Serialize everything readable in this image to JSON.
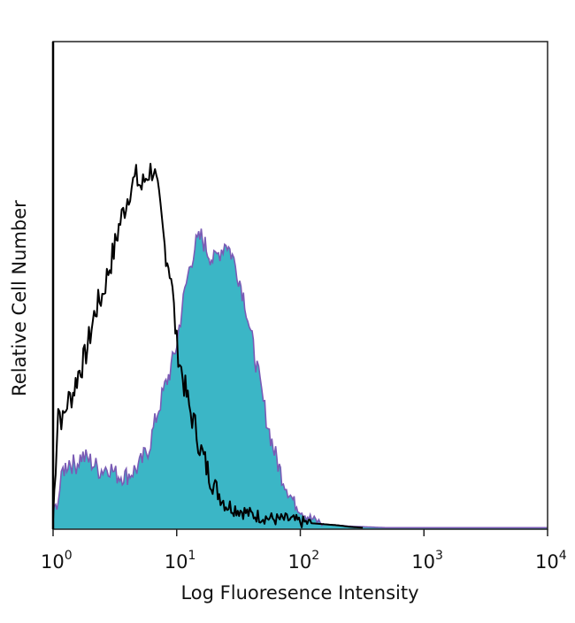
{
  "chart_data": {
    "type": "area",
    "title": "",
    "xlabel": "Log Fluoresence Intensity",
    "ylabel": "Relative Cell Number",
    "xscale": "log",
    "xlim": [
      1,
      10000
    ],
    "ylim": [
      0,
      100
    ],
    "grid": false,
    "legend": "none",
    "x_ticks": [
      {
        "base": "10",
        "exp": "0",
        "value": 1
      },
      {
        "base": "10",
        "exp": "1",
        "value": 10
      },
      {
        "base": "10",
        "exp": "2",
        "value": 100
      },
      {
        "base": "10",
        "exp": "3",
        "value": 1000
      },
      {
        "base": "10",
        "exp": "4",
        "value": 10000
      }
    ],
    "series": [
      {
        "role": "isotype-control",
        "style": "line",
        "color": "#000000",
        "x": [
          1.0,
          1.1,
          1.2,
          1.3,
          1.45,
          1.6,
          1.8,
          2.0,
          2.2,
          2.5,
          2.8,
          3.1,
          3.4,
          3.8,
          4.2,
          4.7,
          5.2,
          5.8,
          6.5,
          7.2,
          8.0,
          9.0,
          10.0,
          11.2,
          12.6,
          14.1,
          15.8,
          17.8,
          20.0,
          25,
          32,
          40,
          50,
          63,
          80,
          100,
          126,
          160,
          200,
          250,
          320
        ],
        "y": [
          2,
          25,
          22,
          26,
          28,
          32,
          35,
          40,
          45,
          48,
          53,
          57,
          62,
          66,
          70,
          72,
          70,
          73,
          74,
          67,
          58,
          52,
          38,
          31,
          25,
          21,
          16,
          12,
          9,
          5,
          4,
          3,
          2.5,
          2,
          2,
          1.5,
          1.2,
          1,
          0.8,
          0.5,
          0.3
        ]
      },
      {
        "role": "stained",
        "style": "filled",
        "color": "#3bb6c6",
        "edge_color": "#7a5bb5",
        "x": [
          1.0,
          1.1,
          1.2,
          1.35,
          1.5,
          1.7,
          2.0,
          2.4,
          2.8,
          3.3,
          4.0,
          5.0,
          6.0,
          7.0,
          8.0,
          9.0,
          10.0,
          11.0,
          12.3,
          14.0,
          15.8,
          17.8,
          20.0,
          22.4,
          25.1,
          28.2,
          31.6,
          35.5,
          39.8,
          44.7,
          50.1,
          56.2,
          63.1,
          70.8,
          79.4,
          89.1,
          100,
          112,
          126,
          141,
          158,
          200,
          250,
          320,
          400,
          500,
          700,
          1000,
          1500,
          2500,
          3500,
          5000,
          10000
        ],
        "y": [
          3,
          6,
          12,
          14,
          13,
          15,
          14,
          12,
          13,
          11,
          11,
          13,
          17,
          24,
          29,
          33,
          38,
          45,
          52,
          58,
          60,
          57,
          55,
          57,
          59,
          56,
          52,
          47,
          40,
          33,
          26,
          20,
          15,
          11,
          8,
          5.5,
          4,
          2.8,
          2,
          1.5,
          1,
          0.8,
          0.6,
          0.5,
          0.4,
          0.3,
          0.3,
          0.3,
          0.3,
          0.3,
          0.3,
          0.3,
          0.3
        ]
      }
    ]
  }
}
